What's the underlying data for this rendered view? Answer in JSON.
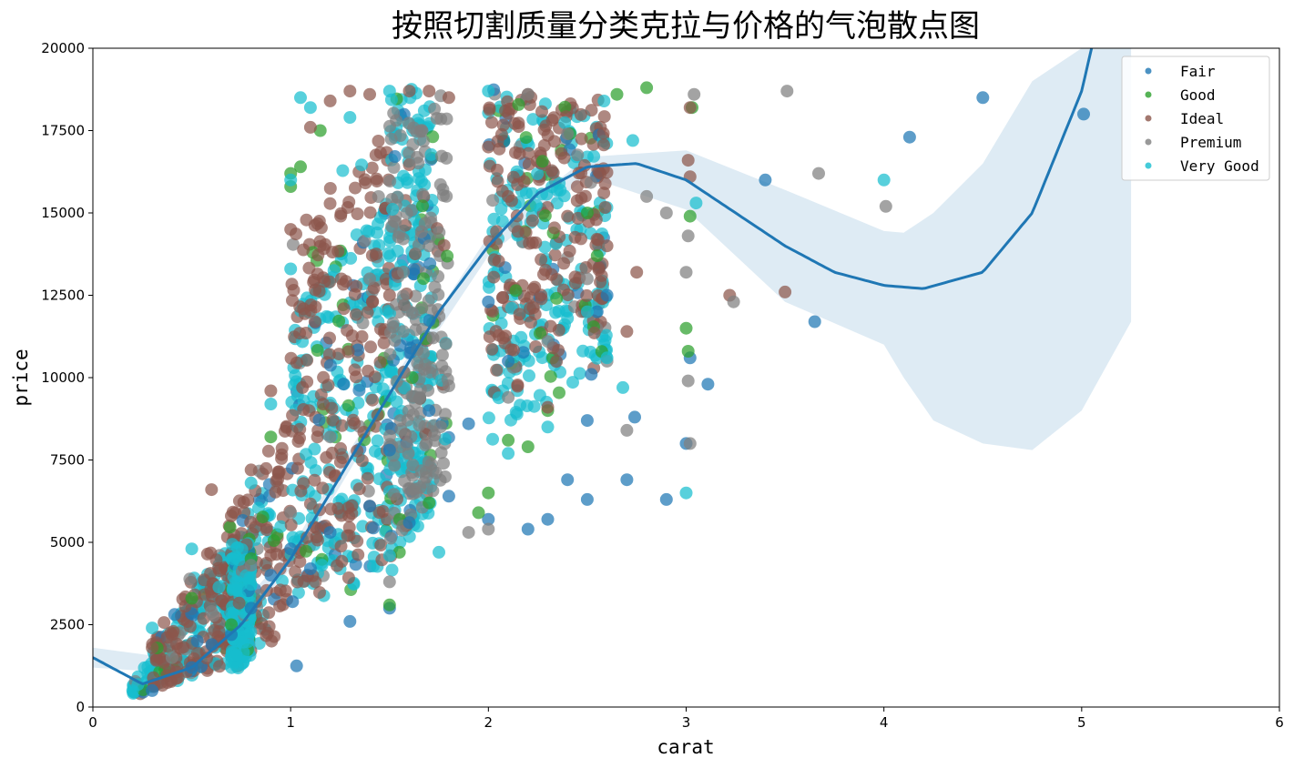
{
  "chart_data": {
    "type": "scatter",
    "title": "按照切割质量分类克拉与价格的气泡散点图",
    "xlabel": "carat",
    "ylabel": "price",
    "xlim": [
      0,
      6
    ],
    "ylim": [
      0,
      20000
    ],
    "x_ticks": [
      0,
      1,
      2,
      3,
      4,
      5,
      6
    ],
    "y_ticks": [
      0,
      2500,
      5000,
      7500,
      10000,
      12500,
      15000,
      17500,
      20000
    ],
    "grid": false,
    "legend_position": "top-right",
    "series": [
      {
        "name": "Fair",
        "color": "#1f77b4",
        "points": [
          [
            0.3,
            500
          ],
          [
            0.5,
            1200
          ],
          [
            0.7,
            2200
          ],
          [
            0.8,
            3000
          ],
          [
            0.9,
            4000
          ],
          [
            1.0,
            4800
          ],
          [
            1.01,
            3200
          ],
          [
            1.03,
            1250
          ],
          [
            1.1,
            4200
          ],
          [
            1.2,
            5300
          ],
          [
            1.3,
            2600
          ],
          [
            1.4,
            6100
          ],
          [
            1.5,
            3000
          ],
          [
            1.5,
            7800
          ],
          [
            1.6,
            5600
          ],
          [
            1.7,
            9000
          ],
          [
            1.8,
            6400
          ],
          [
            1.9,
            8600
          ],
          [
            2.0,
            5700
          ],
          [
            2.0,
            12300
          ],
          [
            2.1,
            10500
          ],
          [
            2.2,
            5400
          ],
          [
            2.3,
            5700
          ],
          [
            2.4,
            6900
          ],
          [
            2.5,
            6300
          ],
          [
            2.5,
            8700
          ],
          [
            2.52,
            10100
          ],
          [
            2.55,
            12000
          ],
          [
            2.6,
            12500
          ],
          [
            2.7,
            6900
          ],
          [
            2.74,
            8800
          ],
          [
            2.9,
            6300
          ],
          [
            3.0,
            8000
          ],
          [
            3.02,
            10600
          ],
          [
            3.11,
            9800
          ],
          [
            3.4,
            16000
          ],
          [
            3.65,
            11700
          ],
          [
            4.13,
            17300
          ],
          [
            4.5,
            18500
          ],
          [
            5.01,
            18000
          ]
        ]
      },
      {
        "name": "Good",
        "color": "#2ca02c",
        "points": [
          [
            0.5,
            3300
          ],
          [
            0.7,
            2500
          ],
          [
            0.8,
            4500
          ],
          [
            0.9,
            8200
          ],
          [
            1.0,
            15800
          ],
          [
            1.0,
            16200
          ],
          [
            1.05,
            16400
          ],
          [
            1.15,
            17500
          ],
          [
            1.5,
            3100
          ],
          [
            1.55,
            4700
          ],
          [
            1.7,
            6200
          ],
          [
            1.95,
            5900
          ],
          [
            2.0,
            6500
          ],
          [
            2.1,
            8100
          ],
          [
            2.2,
            7900
          ],
          [
            2.3,
            9000
          ],
          [
            2.5,
            15000
          ],
          [
            2.55,
            13700
          ],
          [
            2.65,
            18600
          ],
          [
            2.8,
            18800
          ],
          [
            3.0,
            11500
          ],
          [
            3.01,
            10800
          ],
          [
            3.02,
            14900
          ],
          [
            3.03,
            18200
          ]
        ]
      },
      {
        "name": "Ideal",
        "color": "#8c564b",
        "points": [
          [
            0.3,
            1800
          ],
          [
            0.4,
            2200
          ],
          [
            0.6,
            6600
          ],
          [
            0.7,
            5800
          ],
          [
            0.8,
            7200
          ],
          [
            0.9,
            9600
          ],
          [
            1.0,
            14500
          ],
          [
            1.1,
            17600
          ],
          [
            1.2,
            18400
          ],
          [
            1.3,
            18700
          ],
          [
            1.4,
            18600
          ],
          [
            1.5,
            12500
          ],
          [
            1.6,
            18700
          ],
          [
            1.7,
            18700
          ],
          [
            1.8,
            18500
          ],
          [
            2.0,
            17000
          ],
          [
            2.1,
            15500
          ],
          [
            2.2,
            18600
          ],
          [
            2.3,
            9100
          ],
          [
            2.4,
            14900
          ],
          [
            2.6,
            14000
          ],
          [
            2.7,
            11400
          ],
          [
            2.75,
            13200
          ],
          [
            3.01,
            16600
          ],
          [
            3.02,
            16100
          ],
          [
            3.02,
            18200
          ],
          [
            3.22,
            12500
          ],
          [
            3.5,
            12600
          ]
        ]
      },
      {
        "name": "Premium",
        "color": "#7f7f7f",
        "points": [
          [
            0.4,
            1500
          ],
          [
            0.6,
            2900
          ],
          [
            0.8,
            4300
          ],
          [
            1.0,
            5900
          ],
          [
            1.2,
            8200
          ],
          [
            1.4,
            13000
          ],
          [
            1.5,
            3800
          ],
          [
            1.7,
            14000
          ],
          [
            1.9,
            5300
          ],
          [
            2.0,
            5400
          ],
          [
            2.1,
            9400
          ],
          [
            2.2,
            18600
          ],
          [
            2.3,
            11100
          ],
          [
            2.4,
            17400
          ],
          [
            2.5,
            13000
          ],
          [
            2.6,
            10500
          ],
          [
            2.7,
            8400
          ],
          [
            2.8,
            15500
          ],
          [
            2.9,
            15000
          ],
          [
            3.0,
            13200
          ],
          [
            3.01,
            14300
          ],
          [
            3.01,
            9900
          ],
          [
            3.02,
            8000
          ],
          [
            3.04,
            18600
          ],
          [
            3.24,
            12300
          ],
          [
            3.51,
            18700
          ],
          [
            3.67,
            16200
          ],
          [
            4.01,
            15200
          ]
        ]
      },
      {
        "name": "Very Good",
        "color": "#17becf",
        "points": [
          [
            0.3,
            2400
          ],
          [
            0.5,
            4800
          ],
          [
            0.8,
            6800
          ],
          [
            0.9,
            9200
          ],
          [
            1.0,
            13300
          ],
          [
            1.0,
            16000
          ],
          [
            1.05,
            18500
          ],
          [
            1.1,
            18200
          ],
          [
            1.3,
            17900
          ],
          [
            1.5,
            4600
          ],
          [
            1.5,
            18700
          ],
          [
            1.75,
            4700
          ],
          [
            2.0,
            18700
          ],
          [
            2.1,
            7700
          ],
          [
            2.3,
            8500
          ],
          [
            2.4,
            11800
          ],
          [
            2.5,
            12000
          ],
          [
            2.6,
            10600
          ],
          [
            2.68,
            9700
          ],
          [
            2.73,
            17200
          ],
          [
            3.0,
            6500
          ],
          [
            3.05,
            15300
          ],
          [
            4.0,
            16000
          ]
        ]
      }
    ],
    "cloud_clusters": [
      {
        "series": "Very Good",
        "x": [
          0.2,
          0.9
        ],
        "price_low": [
          300,
          1800
        ],
        "price_high": [
          700,
          7000
        ]
      },
      {
        "series": "Ideal",
        "x": [
          0.3,
          1.0
        ],
        "price_low": [
          500,
          2000
        ],
        "price_high": [
          2000,
          9000
        ]
      },
      {
        "series": "Very Good",
        "x": [
          0.7,
          0.8
        ],
        "price_low": [
          1000,
          1500
        ],
        "price_high": [
          5000,
          5000
        ]
      },
      {
        "series": "Very Good",
        "x": [
          1.0,
          1.5
        ],
        "price_low": [
          2500,
          4200
        ],
        "price_high": [
          12000,
          15500
        ]
      },
      {
        "series": "Ideal",
        "x": [
          1.0,
          1.5
        ],
        "price_low": [
          3000,
          4500
        ],
        "price_high": [
          15000,
          17500
        ]
      },
      {
        "series": "Very Good",
        "x": [
          1.5,
          1.72
        ],
        "price_low": [
          4000,
          6000
        ],
        "price_high": [
          18800,
          18800
        ]
      },
      {
        "series": "Premium",
        "x": [
          1.5,
          1.8
        ],
        "price_low": [
          4500,
          6500
        ],
        "price_high": [
          18000,
          18800
        ]
      },
      {
        "series": "Very Good",
        "x": [
          2.0,
          2.6
        ],
        "price_low": [
          8000,
          10500
        ],
        "price_high": [
          18800,
          18000
        ]
      },
      {
        "series": "Ideal",
        "x": [
          2.0,
          2.6
        ],
        "price_low": [
          9000,
          11500
        ],
        "price_high": [
          18800,
          18500
        ]
      }
    ],
    "regression": {
      "color": "#1f77b4",
      "fit_x": [
        0.0,
        0.25,
        0.5,
        0.75,
        1.0,
        1.25,
        1.5,
        1.75,
        2.0,
        2.25,
        2.5,
        2.75,
        3.0,
        3.25,
        3.5,
        3.75,
        4.0,
        4.2,
        4.5,
        4.75,
        5.0,
        5.05
      ],
      "fit_y": [
        1500,
        700,
        1200,
        2500,
        4500,
        7000,
        9500,
        12000,
        14000,
        15600,
        16400,
        16500,
        16000,
        15000,
        14000,
        13200,
        12800,
        12700,
        13200,
        15000,
        18700,
        20000
      ],
      "ci_x": [
        0.0,
        0.5,
        1.0,
        1.5,
        2.0,
        2.5,
        3.0,
        3.5,
        4.0,
        4.1,
        4.25,
        4.5,
        4.75,
        5.0,
        5.25
      ],
      "ci_upper": [
        1800,
        1400,
        4800,
        9800,
        14300,
        16700,
        16900,
        15700,
        14450,
        14400,
        15000,
        16500,
        19000,
        20000,
        20000
      ],
      "ci_lower": [
        1200,
        1000,
        4200,
        9200,
        13700,
        16100,
        15100,
        12300,
        11000,
        10000,
        8700,
        8000,
        7800,
        9000,
        11700
      ]
    }
  }
}
